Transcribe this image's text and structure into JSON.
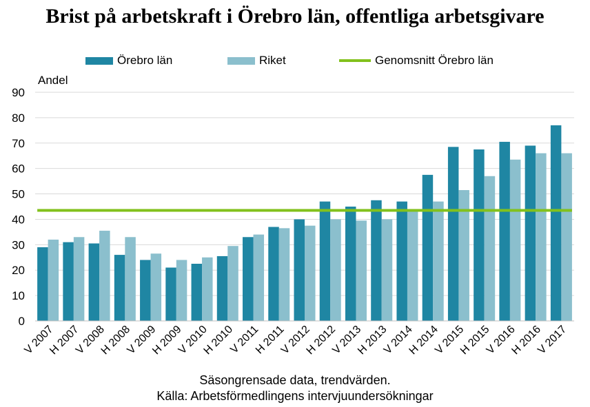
{
  "chart_data": {
    "type": "bar",
    "title": "Brist på arbetskraft i Örebro län, offentliga arbetsgivare",
    "ylabel": "Andel",
    "xlabel": "",
    "ylim": [
      0,
      90
    ],
    "yticks": [
      0,
      10,
      20,
      30,
      40,
      50,
      60,
      70,
      80,
      90
    ],
    "grid": true,
    "legend_position": "top",
    "categories": [
      "V 2007",
      "H 2007",
      "V 2008",
      "H 2008",
      "V 2009",
      "H 2009",
      "V 2010",
      "H 2010",
      "V 2011",
      "H 2011",
      "V 2012",
      "H 2012",
      "V 2013",
      "H 2013",
      "V 2014",
      "H 2014",
      "V 2015",
      "H 2015",
      "V 2016",
      "H 2016",
      "V 2017"
    ],
    "series": [
      {
        "name": "Örebro län",
        "type": "bar",
        "color": "#1f86a3",
        "values": [
          29,
          31,
          30.5,
          26,
          24,
          21,
          22.5,
          25.5,
          33,
          37,
          40,
          47,
          45,
          47.5,
          47,
          57.5,
          68.5,
          67.5,
          70.5,
          69,
          77
        ]
      },
      {
        "name": "Riket",
        "type": "bar",
        "color": "#8bbfcd",
        "values": [
          32,
          33,
          35.5,
          33,
          26.5,
          24,
          25,
          29.5,
          34,
          36.5,
          37.5,
          40,
          39.5,
          40,
          43.5,
          47,
          51.5,
          57,
          63.5,
          66,
          66
        ]
      },
      {
        "name": "Genomsnitt Örebro län",
        "type": "line",
        "color": "#82c11c",
        "values": [
          43.5,
          43.5,
          43.5,
          43.5,
          43.5,
          43.5,
          43.5,
          43.5,
          43.5,
          43.5,
          43.5,
          43.5,
          43.5,
          43.5,
          43.5,
          43.5,
          43.5,
          43.5,
          43.5,
          43.5,
          43.5
        ]
      }
    ],
    "notes": [
      "Säsongrensade data, trendvärden.",
      "Källa: Arbetsförmedlingens intervjuundersökningar"
    ]
  }
}
